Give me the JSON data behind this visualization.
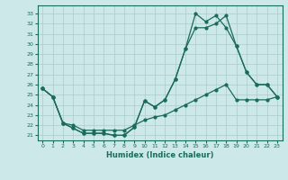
{
  "xlabel": "Humidex (Indice chaleur)",
  "bg_color": "#cce8e8",
  "line_color": "#1a6b5a",
  "grid_color": "#aacccc",
  "xlim": [
    -0.5,
    23.5
  ],
  "ylim": [
    20.5,
    33.8
  ],
  "xticks": [
    0,
    1,
    2,
    3,
    4,
    5,
    6,
    7,
    8,
    9,
    10,
    11,
    12,
    13,
    14,
    15,
    16,
    17,
    18,
    19,
    20,
    21,
    22,
    23
  ],
  "yticks": [
    21,
    22,
    23,
    24,
    25,
    26,
    27,
    28,
    29,
    30,
    31,
    32,
    33
  ],
  "line1_x": [
    0,
    1,
    2,
    3,
    4,
    5,
    6,
    7,
    8,
    9,
    10,
    11,
    12,
    13,
    14,
    15,
    16,
    17,
    18,
    19,
    20,
    21,
    22,
    23
  ],
  "line1_y": [
    25.6,
    24.8,
    22.2,
    21.7,
    21.2,
    21.2,
    21.2,
    21.0,
    21.0,
    21.8,
    24.4,
    23.8,
    24.5,
    26.5,
    29.5,
    31.6,
    31.6,
    32.0,
    32.8,
    29.8,
    27.2,
    26.0,
    26.0,
    24.8
  ],
  "line2_x": [
    0,
    1,
    2,
    3,
    4,
    5,
    6,
    7,
    8,
    9,
    10,
    11,
    12,
    13,
    14,
    15,
    16,
    17,
    18,
    19,
    20,
    21,
    22,
    23
  ],
  "line2_y": [
    25.6,
    24.8,
    22.2,
    21.7,
    21.2,
    21.2,
    21.2,
    21.0,
    21.0,
    21.8,
    24.4,
    23.8,
    24.5,
    26.5,
    29.5,
    33.0,
    32.2,
    32.8,
    31.6,
    29.8,
    27.2,
    26.0,
    26.0,
    24.8
  ],
  "line3_x": [
    0,
    1,
    2,
    3,
    4,
    5,
    6,
    7,
    8,
    9,
    10,
    11,
    12,
    13,
    14,
    15,
    16,
    17,
    18,
    19,
    20,
    21,
    22,
    23
  ],
  "line3_y": [
    25.6,
    24.8,
    22.2,
    22.0,
    21.5,
    21.5,
    21.5,
    21.5,
    21.5,
    22.0,
    22.5,
    22.8,
    23.0,
    23.5,
    24.0,
    24.5,
    25.0,
    25.5,
    26.0,
    24.5,
    24.5,
    24.5,
    24.5,
    24.8
  ]
}
